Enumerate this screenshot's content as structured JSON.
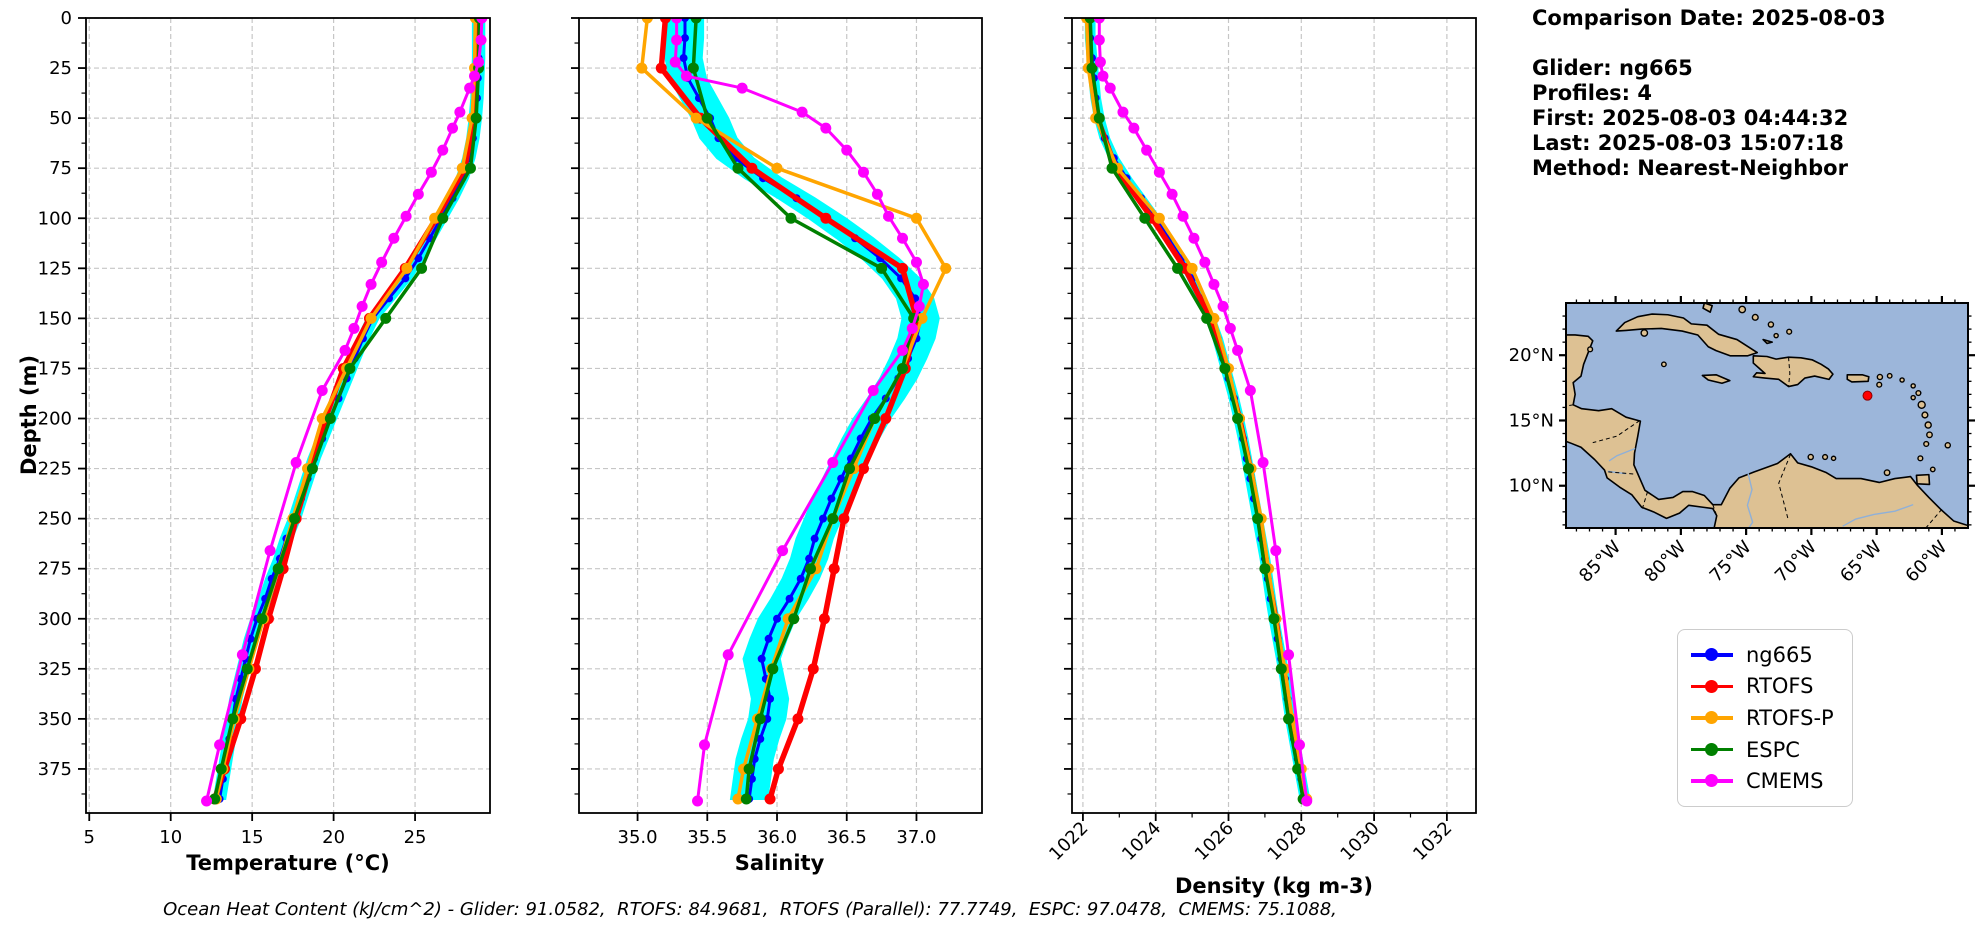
{
  "header": {
    "comparison_date": "Comparison Date: 2025-08-03",
    "spacer": "",
    "glider": "Glider: ng665",
    "profiles": "Profiles: 4",
    "first": "First: 2025-08-03 04:44:32",
    "last": "Last: 2025-08-03 15:07:18",
    "method": "Method: Nearest-Neighbor"
  },
  "caption": "Ocean Heat Content (kJ/cm^2) - Glider: 91.0582,  RTOFS: 84.9681,  RTOFS (Parallel): 77.7749,  ESPC: 97.0478,  CMEMS: 75.1088,",
  "legend": {
    "items": [
      {
        "label": "ng665",
        "color": "#0000ff"
      },
      {
        "label": "RTOFS",
        "color": "#ff0000"
      },
      {
        "label": "RTOFS-P",
        "color": "#ffa500"
      },
      {
        "label": "ESPC",
        "color": "#008000"
      },
      {
        "label": "CMEMS",
        "color": "#ff00ff"
      }
    ]
  },
  "map": {
    "ocean_color": "#9cb6da",
    "land_color": "#ddc193",
    "extent": {
      "lon_min": -88.8,
      "lon_max": -58.0,
      "lat_min": 6.76,
      "lat_max": 24.0
    },
    "lon_ticks": [
      {
        "deg": -85,
        "label": "85°W"
      },
      {
        "deg": -80,
        "label": "80°W"
      },
      {
        "deg": -75,
        "label": "75°W"
      },
      {
        "deg": -70,
        "label": "70°W"
      },
      {
        "deg": -65,
        "label": "65°W"
      },
      {
        "deg": -60,
        "label": "60°W"
      }
    ],
    "lat_ticks": [
      {
        "deg": 20,
        "label": "20°N"
      },
      {
        "deg": 15,
        "label": "15°N"
      },
      {
        "deg": 10,
        "label": "10°N"
      }
    ],
    "marker": {
      "lon": -65.7,
      "lat": 16.9,
      "color": "#ff0000"
    }
  },
  "chart_data": [
    {
      "type": "line",
      "xlabel": "Temperature (°C)",
      "ylabel": "Depth (m)",
      "xlim": [
        4.8,
        29.6
      ],
      "ylim": [
        0,
        397
      ],
      "grid": true,
      "xticks": [
        5,
        10,
        15,
        20,
        25
      ],
      "xtick_labels": [
        "5",
        "10",
        "15",
        "20",
        "25"
      ],
      "yticks": [
        0,
        25,
        50,
        75,
        100,
        125,
        150,
        175,
        200,
        225,
        250,
        275,
        300,
        325,
        350,
        375
      ],
      "show_ytick_labels": true,
      "envelope": {
        "series": "ng665",
        "halfwidth": 0.35,
        "color": "#00ffff"
      },
      "series": [
        {
          "name": "ng665",
          "color": "#0000ff",
          "line_width": 3,
          "marker_radius": 4,
          "depths": [
            0,
            10,
            20,
            30,
            40,
            50,
            60,
            70,
            80,
            90,
            100,
            110,
            120,
            130,
            140,
            150,
            160,
            170,
            180,
            190,
            200,
            210,
            220,
            230,
            240,
            250,
            260,
            270,
            280,
            290,
            300,
            310,
            320,
            330,
            340,
            350,
            360,
            370,
            380,
            390
          ],
          "values": [
            28.9,
            28.9,
            28.9,
            28.85,
            28.8,
            28.7,
            28.55,
            28.3,
            27.9,
            27.3,
            26.6,
            25.9,
            25.2,
            24.4,
            23.4,
            22.4,
            21.8,
            21.3,
            20.8,
            20.3,
            19.8,
            19.3,
            18.8,
            18.4,
            18.0,
            17.6,
            17.1,
            16.7,
            16.2,
            15.8,
            15.3,
            14.9,
            14.6,
            14.3,
            14.0,
            13.8,
            13.6,
            13.4,
            13.2,
            13.0
          ]
        },
        {
          "name": "RTOFS",
          "color": "#ff0000",
          "line_width": 5.5,
          "marker_radius": 5.5,
          "depths": [
            0,
            25,
            50,
            75,
            100,
            125,
            150,
            175,
            200,
            225,
            250,
            275,
            300,
            325,
            350,
            375,
            390
          ],
          "values": [
            28.8,
            28.75,
            28.6,
            28.05,
            26.3,
            24.4,
            22.2,
            20.6,
            19.5,
            18.6,
            17.7,
            16.9,
            16.0,
            15.2,
            14.3,
            13.3,
            12.7
          ]
        },
        {
          "name": "RTOFS-P",
          "color": "#ffa500",
          "line_width": 3.5,
          "marker_radius": 5.5,
          "depths": [
            0,
            25,
            50,
            75,
            100,
            125,
            150,
            175,
            200,
            225,
            250,
            275,
            300,
            325,
            350,
            375,
            390
          ],
          "values": [
            28.7,
            28.65,
            28.5,
            27.9,
            26.2,
            24.5,
            22.3,
            20.8,
            19.3,
            18.4,
            17.5,
            16.6,
            15.7,
            14.8,
            13.9,
            13.2,
            12.8
          ]
        },
        {
          "name": "ESPC",
          "color": "#008000",
          "line_width": 3.5,
          "marker_radius": 5.5,
          "depths": [
            0,
            25,
            50,
            75,
            100,
            125,
            150,
            175,
            200,
            225,
            250,
            275,
            300,
            325,
            350,
            375,
            390
          ],
          "values": [
            28.95,
            28.9,
            28.75,
            28.4,
            26.7,
            25.4,
            23.2,
            21.0,
            19.8,
            18.7,
            17.6,
            16.6,
            15.6,
            14.7,
            13.8,
            13.1,
            12.7
          ]
        },
        {
          "name": "CMEMS",
          "color": "#ff00ff",
          "line_width": 3,
          "marker_radius": 5.5,
          "depths": [
            0,
            11,
            22,
            29,
            35,
            47,
            55,
            66,
            77,
            88,
            99,
            110,
            122,
            133,
            144,
            155,
            166,
            186,
            222,
            266,
            318,
            363,
            391
          ],
          "values": [
            29.1,
            29.05,
            28.9,
            28.65,
            28.35,
            27.75,
            27.3,
            26.7,
            26.0,
            25.2,
            24.45,
            23.7,
            22.95,
            22.3,
            21.75,
            21.25,
            20.7,
            19.3,
            17.7,
            16.1,
            14.4,
            13.0,
            12.2
          ]
        }
      ]
    },
    {
      "type": "line",
      "xlabel": "Salinity",
      "ylabel": "",
      "xlim": [
        34.58,
        37.47
      ],
      "ylim": [
        0,
        397
      ],
      "grid": true,
      "xticks": [
        35.0,
        35.5,
        36.0,
        36.5,
        37.0
      ],
      "xtick_labels": [
        "35.0",
        "35.5",
        "36.0",
        "36.5",
        "37.0"
      ],
      "yticks": [
        0,
        25,
        50,
        75,
        100,
        125,
        150,
        175,
        200,
        225,
        250,
        275,
        300,
        325,
        350,
        375
      ],
      "show_ytick_labels": false,
      "envelope": {
        "series": "ng665",
        "halfwidth": 0.13,
        "color": "#00ffff"
      },
      "series": [
        {
          "name": "ng665",
          "color": "#0000ff",
          "line_width": 3,
          "marker_radius": 4,
          "depths": [
            0,
            10,
            20,
            30,
            40,
            50,
            60,
            70,
            80,
            90,
            100,
            110,
            120,
            130,
            140,
            150,
            160,
            170,
            180,
            190,
            200,
            210,
            220,
            230,
            240,
            250,
            260,
            270,
            280,
            290,
            300,
            310,
            320,
            330,
            340,
            350,
            360,
            370,
            380,
            390
          ],
          "values": [
            35.34,
            35.34,
            35.33,
            35.36,
            35.44,
            35.52,
            35.58,
            35.7,
            35.9,
            36.14,
            36.36,
            36.56,
            36.74,
            36.89,
            36.99,
            37.03,
            37.0,
            36.94,
            36.87,
            36.78,
            36.68,
            36.6,
            36.53,
            36.46,
            36.39,
            36.33,
            36.27,
            36.23,
            36.17,
            36.09,
            36.0,
            35.94,
            35.89,
            35.92,
            35.95,
            35.93,
            35.88,
            35.84,
            35.82,
            35.8
          ]
        },
        {
          "name": "RTOFS",
          "color": "#ff0000",
          "line_width": 5.5,
          "marker_radius": 5.5,
          "depths": [
            0,
            25,
            50,
            75,
            100,
            125,
            150,
            175,
            200,
            225,
            250,
            275,
            300,
            325,
            350,
            375,
            390
          ],
          "values": [
            35.2,
            35.17,
            35.45,
            35.82,
            36.35,
            36.9,
            37.0,
            36.92,
            36.78,
            36.62,
            36.48,
            36.41,
            36.34,
            36.26,
            36.15,
            36.01,
            35.95
          ]
        },
        {
          "name": "RTOFS-P",
          "color": "#ffa500",
          "line_width": 3.5,
          "marker_radius": 5.5,
          "depths": [
            0,
            25,
            50,
            75,
            100,
            125,
            150,
            175,
            200,
            225,
            250,
            275,
            300,
            325,
            350,
            375,
            390
          ],
          "values": [
            35.07,
            35.03,
            35.42,
            36.0,
            37.0,
            37.21,
            37.04,
            36.9,
            36.7,
            36.55,
            36.4,
            36.28,
            36.08,
            35.96,
            35.86,
            35.76,
            35.72
          ]
        },
        {
          "name": "ESPC",
          "color": "#008000",
          "line_width": 3.5,
          "marker_radius": 5.5,
          "depths": [
            0,
            25,
            50,
            75,
            100,
            125,
            150,
            175,
            200,
            225,
            250,
            275,
            300,
            325,
            350,
            375,
            390
          ],
          "values": [
            35.42,
            35.4,
            35.5,
            35.72,
            36.1,
            36.75,
            36.98,
            36.9,
            36.7,
            36.52,
            36.4,
            36.24,
            36.12,
            35.97,
            35.88,
            35.8,
            35.78
          ]
        },
        {
          "name": "CMEMS",
          "color": "#ff00ff",
          "line_width": 3,
          "marker_radius": 5.5,
          "depths": [
            0,
            11,
            22,
            29,
            35,
            47,
            55,
            66,
            77,
            88,
            99,
            110,
            122,
            133,
            144,
            155,
            166,
            186,
            222,
            266,
            318,
            363,
            391
          ],
          "values": [
            35.28,
            35.28,
            35.27,
            35.35,
            35.75,
            36.18,
            36.35,
            36.5,
            36.62,
            36.72,
            36.8,
            36.9,
            37.0,
            37.05,
            37.02,
            36.97,
            36.9,
            36.69,
            36.4,
            36.04,
            35.65,
            35.48,
            35.43
          ]
        }
      ]
    },
    {
      "type": "line",
      "xlabel": "Density (kg m-3)",
      "ylabel": "",
      "xlim": [
        1021.7,
        1032.8
      ],
      "ylim": [
        0,
        397
      ],
      "grid": true,
      "xticks": [
        1022,
        1024,
        1026,
        1028,
        1030,
        1032
      ],
      "xtick_labels": [
        "1022",
        "1024",
        "1026",
        "1028",
        "1030",
        "1032"
      ],
      "xticks_minor": [
        1023,
        1025,
        1027,
        1029,
        1031
      ],
      "xtick_rotation": 45,
      "yticks": [
        0,
        25,
        50,
        75,
        100,
        125,
        150,
        175,
        200,
        225,
        250,
        275,
        300,
        325,
        350,
        375
      ],
      "show_ytick_labels": false,
      "envelope": {
        "series": "ng665",
        "halfwidth": 0.12,
        "color": "#00ffff"
      },
      "series": [
        {
          "name": "ng665",
          "color": "#0000ff",
          "line_width": 3,
          "marker_radius": 4,
          "depths": [
            0,
            10,
            20,
            30,
            40,
            50,
            60,
            70,
            80,
            90,
            100,
            110,
            120,
            130,
            140,
            150,
            160,
            170,
            180,
            190,
            200,
            210,
            220,
            230,
            240,
            250,
            260,
            270,
            280,
            290,
            300,
            310,
            320,
            330,
            340,
            350,
            360,
            370,
            380,
            390
          ],
          "values": [
            1022.2,
            1022.2,
            1022.25,
            1022.3,
            1022.35,
            1022.45,
            1022.6,
            1022.85,
            1023.2,
            1023.6,
            1024.0,
            1024.35,
            1024.7,
            1025.0,
            1025.25,
            1025.5,
            1025.7,
            1025.85,
            1026.0,
            1026.15,
            1026.28,
            1026.4,
            1026.5,
            1026.6,
            1026.7,
            1026.8,
            1026.9,
            1027.0,
            1027.08,
            1027.16,
            1027.25,
            1027.35,
            1027.45,
            1027.55,
            1027.62,
            1027.7,
            1027.8,
            1027.9,
            1028.0,
            1028.1
          ]
        },
        {
          "name": "RTOFS",
          "color": "#ff0000",
          "line_width": 5.5,
          "marker_radius": 5.5,
          "depths": [
            0,
            25,
            50,
            75,
            100,
            125,
            150,
            175,
            200,
            225,
            250,
            275,
            300,
            325,
            350,
            375,
            390
          ],
          "values": [
            1022.15,
            1022.2,
            1022.4,
            1022.9,
            1023.9,
            1024.8,
            1025.5,
            1025.95,
            1026.3,
            1026.6,
            1026.85,
            1027.05,
            1027.3,
            1027.5,
            1027.7,
            1027.95,
            1028.1
          ]
        },
        {
          "name": "RTOFS-P",
          "color": "#ffa500",
          "line_width": 3.5,
          "marker_radius": 5.5,
          "depths": [
            0,
            25,
            50,
            75,
            100,
            125,
            150,
            175,
            200,
            225,
            250,
            275,
            300,
            325,
            350,
            375,
            390
          ],
          "values": [
            1022.1,
            1022.15,
            1022.35,
            1022.95,
            1024.1,
            1025.0,
            1025.6,
            1026.0,
            1026.3,
            1026.62,
            1026.9,
            1027.1,
            1027.3,
            1027.55,
            1027.75,
            1028.0,
            1028.15
          ]
        },
        {
          "name": "ESPC",
          "color": "#008000",
          "line_width": 3.5,
          "marker_radius": 5.5,
          "depths": [
            0,
            25,
            50,
            75,
            100,
            125,
            150,
            175,
            200,
            225,
            250,
            275,
            300,
            325,
            350,
            375,
            390
          ],
          "values": [
            1022.2,
            1022.25,
            1022.45,
            1022.8,
            1023.7,
            1024.6,
            1025.4,
            1025.9,
            1026.25,
            1026.55,
            1026.8,
            1027.0,
            1027.25,
            1027.45,
            1027.65,
            1027.9,
            1028.05
          ]
        },
        {
          "name": "CMEMS",
          "color": "#ff00ff",
          "line_width": 3,
          "marker_radius": 5.5,
          "depths": [
            0,
            11,
            22,
            29,
            35,
            47,
            55,
            66,
            77,
            88,
            99,
            110,
            122,
            133,
            144,
            155,
            166,
            186,
            222,
            266,
            318,
            363,
            391
          ],
          "values": [
            1022.45,
            1022.45,
            1022.48,
            1022.55,
            1022.75,
            1023.1,
            1023.4,
            1023.75,
            1024.1,
            1024.45,
            1024.75,
            1025.05,
            1025.35,
            1025.6,
            1025.85,
            1026.05,
            1026.25,
            1026.6,
            1026.95,
            1027.3,
            1027.65,
            1027.95,
            1028.15
          ]
        }
      ]
    }
  ]
}
